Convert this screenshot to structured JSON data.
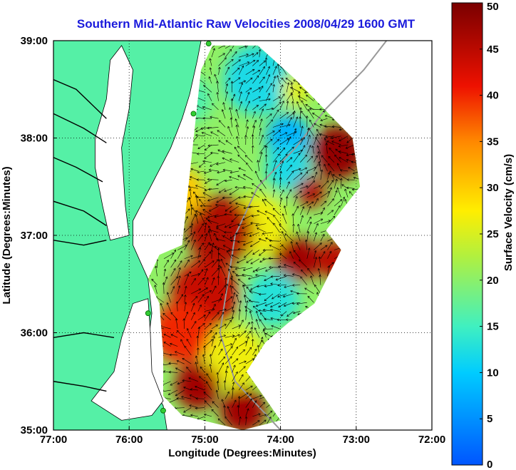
{
  "chart_data": {
    "type": "heatmap",
    "title": "Southern Mid-Atlantic Raw Velocities 2008/04/29 1600 GMT",
    "xlabel": "Longitude (Degrees:Minutes)",
    "ylabel": "Latitude (Degrees:Minutes)",
    "xlim": [
      -77,
      -72
    ],
    "ylim": [
      35,
      39
    ],
    "x_ticks": [
      {
        "value": -77,
        "label": "77:00"
      },
      {
        "value": -76,
        "label": "76:00"
      },
      {
        "value": -75,
        "label": "75:00"
      },
      {
        "value": -74,
        "label": "74:00"
      },
      {
        "value": -73,
        "label": "73:00"
      },
      {
        "value": -72,
        "label": "72:00"
      }
    ],
    "y_ticks": [
      {
        "value": 35,
        "label": "35:00"
      },
      {
        "value": 36,
        "label": "36:00"
      },
      {
        "value": 37,
        "label": "37:00"
      },
      {
        "value": 38,
        "label": "38:00"
      },
      {
        "value": 39,
        "label": "39:00"
      }
    ],
    "grid": true,
    "colorbar": {
      "label": "Surface Velocity (cm/s)",
      "range": [
        0,
        50
      ],
      "ticks": [
        {
          "value": 0,
          "label": "0"
        },
        {
          "value": 5,
          "label": "5"
        },
        {
          "value": 10,
          "label": "10"
        },
        {
          "value": 15,
          "label": "15"
        },
        {
          "value": 20,
          "label": "20"
        },
        {
          "value": 25,
          "label": "25"
        },
        {
          "value": 30,
          "label": "30"
        },
        {
          "value": 35,
          "label": "35"
        },
        {
          "value": 40,
          "label": "40"
        },
        {
          "value": 45,
          "label": "45"
        },
        {
          "value": 50,
          "label": "50"
        }
      ]
    },
    "land_color": "#55f0a6",
    "speed_regions": [
      {
        "lon": -74.3,
        "lat": 38.6,
        "speed": 12,
        "radius": 0.45
      },
      {
        "lon": -73.9,
        "lat": 38.0,
        "speed": 8,
        "radius": 0.3
      },
      {
        "lon": -73.9,
        "lat": 37.7,
        "speed": 12,
        "radius": 0.3
      },
      {
        "lon": -73.25,
        "lat": 37.85,
        "speed": 48,
        "radius": 0.35
      },
      {
        "lon": -73.6,
        "lat": 37.45,
        "speed": 46,
        "radius": 0.2
      },
      {
        "lon": -74.3,
        "lat": 37.1,
        "speed": 26,
        "radius": 0.4
      },
      {
        "lon": -74.8,
        "lat": 37.05,
        "speed": 46,
        "radius": 0.45
      },
      {
        "lon": -75.3,
        "lat": 37.45,
        "speed": 30,
        "radius": 0.3
      },
      {
        "lon": -73.8,
        "lat": 36.75,
        "speed": 47,
        "radius": 0.3
      },
      {
        "lon": -73.3,
        "lat": 36.75,
        "speed": 45,
        "radius": 0.25
      },
      {
        "lon": -74.1,
        "lat": 36.35,
        "speed": 13,
        "radius": 0.35
      },
      {
        "lon": -75.0,
        "lat": 36.4,
        "speed": 44,
        "radius": 0.45
      },
      {
        "lon": -75.3,
        "lat": 36.0,
        "speed": 40,
        "radius": 0.4
      },
      {
        "lon": -74.6,
        "lat": 35.75,
        "speed": 26,
        "radius": 0.4
      },
      {
        "lon": -75.1,
        "lat": 35.45,
        "speed": 47,
        "radius": 0.3
      },
      {
        "lon": -74.5,
        "lat": 35.2,
        "speed": 47,
        "radius": 0.3
      },
      {
        "lon": -73.8,
        "lat": 38.5,
        "speed": 25,
        "radius": 0.2
      },
      {
        "lon": -75.2,
        "lat": 38.4,
        "speed": 16,
        "radius": 0.3
      }
    ]
  }
}
